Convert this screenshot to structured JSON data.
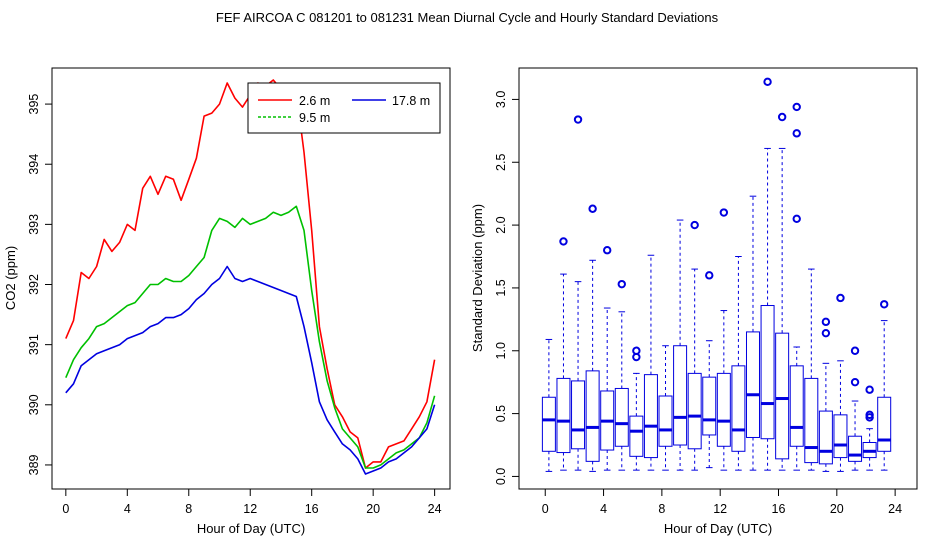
{
  "title": "FEF   AIRCOA C   081201 to 081231   Mean Diurnal Cycle and Hourly Standard Deviations",
  "chart_data": [
    {
      "type": "line",
      "title": "",
      "xlabel": "Hour of Day (UTC)",
      "ylabel": "CO2 (ppm)",
      "xlim": [
        0,
        24
      ],
      "ylim": [
        388.6,
        395.6
      ],
      "xticks": [
        "0",
        "4",
        "8",
        "12",
        "16",
        "20",
        "24"
      ],
      "yticks": [
        "389",
        "390",
        "391",
        "392",
        "393",
        "394",
        "395"
      ],
      "grid": false,
      "legend_position": "top-right",
      "series": [
        {
          "name": "2.6 m",
          "color": "#ff0000",
          "x": [
            0,
            0.5,
            1,
            1.5,
            2,
            2.5,
            3,
            3.5,
            4,
            4.5,
            5,
            5.5,
            6,
            6.5,
            7,
            7.5,
            8,
            8.5,
            9,
            9.5,
            10,
            10.5,
            11,
            11.5,
            12,
            12.5,
            13,
            13.5,
            14,
            14.5,
            15,
            15.5,
            16,
            16.5,
            17,
            17.5,
            18,
            18.5,
            19,
            19.5,
            20,
            20.5,
            21,
            21.5,
            22,
            22.5,
            23,
            23.5,
            24
          ],
          "values": [
            391.1,
            391.4,
            392.2,
            392.1,
            392.3,
            392.75,
            392.55,
            392.7,
            393.0,
            392.9,
            393.6,
            393.8,
            393.5,
            393.8,
            393.75,
            393.4,
            393.75,
            394.1,
            394.8,
            394.85,
            395.0,
            395.35,
            395.1,
            394.95,
            395.15,
            395.35,
            395.3,
            395.4,
            395.25,
            395.3,
            395.2,
            394.2,
            392.9,
            391.3,
            390.6,
            390.0,
            389.8,
            389.55,
            389.45,
            388.95,
            389.05,
            389.05,
            389.3,
            389.35,
            389.4,
            389.6,
            389.8,
            390.05,
            390.75
          ]
        },
        {
          "name": "9.5 m",
          "color": "#00c000",
          "x": [
            0,
            0.5,
            1,
            1.5,
            2,
            2.5,
            3,
            3.5,
            4,
            4.5,
            5,
            5.5,
            6,
            6.5,
            7,
            7.5,
            8,
            8.5,
            9,
            9.5,
            10,
            10.5,
            11,
            11.5,
            12,
            12.5,
            13,
            13.5,
            14,
            14.5,
            15,
            15.5,
            16,
            16.5,
            17,
            17.5,
            18,
            18.5,
            19,
            19.5,
            20,
            20.5,
            21,
            21.5,
            22,
            22.5,
            23,
            23.5,
            24
          ],
          "values": [
            390.45,
            390.75,
            390.95,
            391.1,
            391.3,
            391.35,
            391.45,
            391.55,
            391.65,
            391.7,
            391.85,
            392.0,
            392.0,
            392.1,
            392.05,
            392.05,
            392.15,
            392.3,
            392.45,
            392.9,
            393.1,
            393.05,
            392.95,
            393.1,
            393.0,
            393.05,
            393.1,
            393.2,
            393.15,
            393.2,
            393.3,
            392.9,
            391.9,
            391.05,
            390.4,
            389.95,
            389.6,
            389.45,
            389.3,
            388.95,
            388.95,
            389.0,
            389.1,
            389.2,
            389.25,
            389.35,
            389.45,
            389.7,
            390.15
          ]
        },
        {
          "name": "17.8 m",
          "color": "#0000e0",
          "x": [
            0,
            0.5,
            1,
            1.5,
            2,
            2.5,
            3,
            3.5,
            4,
            4.5,
            5,
            5.5,
            6,
            6.5,
            7,
            7.5,
            8,
            8.5,
            9,
            9.5,
            10,
            10.5,
            11,
            11.5,
            12,
            12.5,
            13,
            13.5,
            14,
            14.5,
            15,
            15.5,
            16,
            16.5,
            17,
            17.5,
            18,
            18.5,
            19,
            19.5,
            20,
            20.5,
            21,
            21.5,
            22,
            22.5,
            23,
            23.5,
            24
          ],
          "values": [
            390.2,
            390.35,
            390.65,
            390.75,
            390.85,
            390.9,
            390.95,
            391.0,
            391.1,
            391.15,
            391.2,
            391.3,
            391.35,
            391.45,
            391.45,
            391.5,
            391.6,
            391.75,
            391.85,
            392.0,
            392.1,
            392.3,
            392.1,
            392.05,
            392.1,
            392.05,
            392.0,
            391.95,
            391.9,
            391.85,
            391.8,
            391.3,
            390.7,
            390.05,
            389.75,
            389.55,
            389.35,
            389.25,
            389.1,
            388.85,
            388.9,
            388.95,
            389.05,
            389.1,
            389.2,
            389.3,
            389.45,
            389.6,
            390.0
          ]
        }
      ]
    },
    {
      "type": "box",
      "title": "",
      "xlabel": "Hour of Day (UTC)",
      "ylabel": "Standard Deviation (ppm)",
      "xlim": [
        -0.5,
        24.5
      ],
      "ylim": [
        -0.1,
        3.25
      ],
      "xticks": [
        "0",
        "4",
        "8",
        "12",
        "16",
        "20",
        "24"
      ],
      "yticks": [
        "0.0",
        "0.5",
        "1.0",
        "1.5",
        "2.0",
        "2.5",
        "3.0"
      ],
      "grid": false,
      "color": "#0000e0",
      "boxes": [
        {
          "x": 0.25,
          "whisker_low": 0.04,
          "q1": 0.2,
          "median": 0.45,
          "q3": 0.63,
          "whisker_high": 1.09,
          "outliers": []
        },
        {
          "x": 1.25,
          "whisker_low": 0.05,
          "q1": 0.19,
          "median": 0.44,
          "q3": 0.78,
          "whisker_high": 1.61,
          "outliers": [
            1.87
          ]
        },
        {
          "x": 2.25,
          "whisker_low": 0.05,
          "q1": 0.22,
          "median": 0.37,
          "q3": 0.76,
          "whisker_high": 1.55,
          "outliers": [
            2.84
          ]
        },
        {
          "x": 3.25,
          "whisker_low": 0.04,
          "q1": 0.12,
          "median": 0.39,
          "q3": 0.84,
          "whisker_high": 1.72,
          "outliers": [
            2.13
          ]
        },
        {
          "x": 4.25,
          "whisker_low": 0.05,
          "q1": 0.21,
          "median": 0.44,
          "q3": 0.68,
          "whisker_high": 1.34,
          "outliers": [
            1.8
          ]
        },
        {
          "x": 5.25,
          "whisker_low": 0.05,
          "q1": 0.24,
          "median": 0.42,
          "q3": 0.7,
          "whisker_high": 1.31,
          "outliers": [
            1.53
          ]
        },
        {
          "x": 6.25,
          "whisker_low": 0.05,
          "q1": 0.16,
          "median": 0.36,
          "q3": 0.48,
          "whisker_high": 0.82,
          "outliers": [
            0.95,
            1.0
          ]
        },
        {
          "x": 7.25,
          "whisker_low": 0.05,
          "q1": 0.15,
          "median": 0.4,
          "q3": 0.81,
          "whisker_high": 1.76,
          "outliers": []
        },
        {
          "x": 8.25,
          "whisker_low": 0.05,
          "q1": 0.24,
          "median": 0.37,
          "q3": 0.64,
          "whisker_high": 1.04,
          "outliers": []
        },
        {
          "x": 9.25,
          "whisker_low": 0.05,
          "q1": 0.25,
          "median": 0.47,
          "q3": 1.04,
          "whisker_high": 2.04,
          "outliers": []
        },
        {
          "x": 10.25,
          "whisker_low": 0.05,
          "q1": 0.22,
          "median": 0.48,
          "q3": 0.82,
          "whisker_high": 1.65,
          "outliers": [
            2.0
          ]
        },
        {
          "x": 11.25,
          "whisker_low": 0.07,
          "q1": 0.33,
          "median": 0.45,
          "q3": 0.79,
          "whisker_high": 1.08,
          "outliers": [
            1.6
          ]
        },
        {
          "x": 12.25,
          "whisker_low": 0.05,
          "q1": 0.24,
          "median": 0.44,
          "q3": 0.82,
          "whisker_high": 1.32,
          "outliers": [
            2.1
          ]
        },
        {
          "x": 13.25,
          "whisker_low": 0.05,
          "q1": 0.2,
          "median": 0.37,
          "q3": 0.88,
          "whisker_high": 1.75,
          "outliers": []
        },
        {
          "x": 14.25,
          "whisker_low": 0.05,
          "q1": 0.31,
          "median": 0.65,
          "q3": 1.15,
          "whisker_high": 2.23,
          "outliers": []
        },
        {
          "x": 15.25,
          "whisker_low": 0.05,
          "q1": 0.3,
          "median": 0.58,
          "q3": 1.36,
          "whisker_high": 2.61,
          "outliers": [
            3.14
          ]
        },
        {
          "x": 16.25,
          "whisker_low": 0.05,
          "q1": 0.14,
          "median": 0.62,
          "q3": 1.14,
          "whisker_high": 2.61,
          "outliers": [
            2.86
          ]
        },
        {
          "x": 17.25,
          "whisker_low": 0.05,
          "q1": 0.24,
          "median": 0.39,
          "q3": 0.88,
          "whisker_high": 1.03,
          "outliers": [
            2.05,
            2.73,
            2.94
          ]
        },
        {
          "x": 18.25,
          "whisker_low": 0.05,
          "q1": 0.11,
          "median": 0.23,
          "q3": 0.78,
          "whisker_high": 1.65,
          "outliers": []
        },
        {
          "x": 19.25,
          "whisker_low": 0.04,
          "q1": 0.1,
          "median": 0.2,
          "q3": 0.52,
          "whisker_high": 0.9,
          "outliers": [
            1.14,
            1.23
          ]
        },
        {
          "x": 20.25,
          "whisker_low": 0.04,
          "q1": 0.15,
          "median": 0.25,
          "q3": 0.49,
          "whisker_high": 0.92,
          "outliers": [
            1.42
          ]
        },
        {
          "x": 21.25,
          "whisker_low": 0.05,
          "q1": 0.12,
          "median": 0.17,
          "q3": 0.32,
          "whisker_high": 0.6,
          "outliers": [
            0.75,
            1.0
          ]
        },
        {
          "x": 22.25,
          "whisker_low": 0.05,
          "q1": 0.15,
          "median": 0.2,
          "q3": 0.27,
          "whisker_high": 0.38,
          "outliers": [
            0.47,
            0.49,
            0.69
          ]
        },
        {
          "x": 23.25,
          "whisker_low": 0.05,
          "q1": 0.2,
          "median": 0.29,
          "q3": 0.63,
          "whisker_high": 1.24,
          "outliers": [
            1.37
          ]
        }
      ]
    }
  ]
}
